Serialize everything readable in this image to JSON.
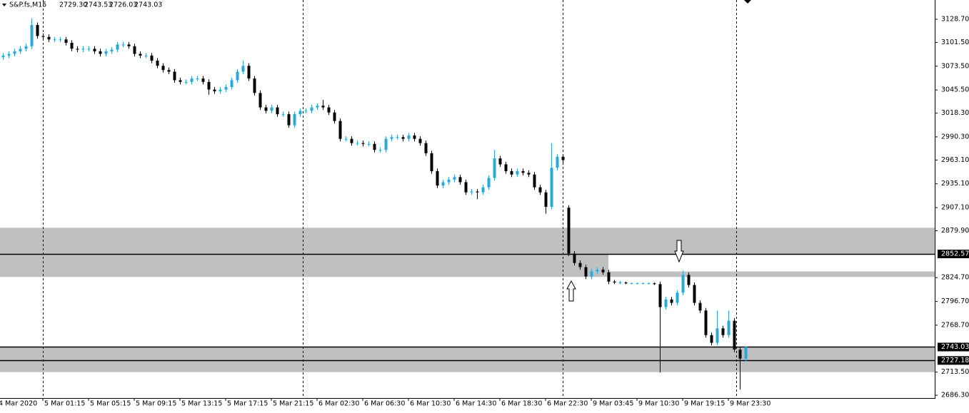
{
  "chart_data": {
    "type": "candlestick",
    "symbol": "S&P.fs,M15",
    "header_values": [
      "2729.30",
      "2743.53",
      "2726.03",
      "2743.03"
    ],
    "up_color": "#29a8e0",
    "down_color": "#000000",
    "ylim": [
      2683,
      3151.4
    ],
    "yticks": [
      {
        "value": 3128.7,
        "label": "3128.70"
      },
      {
        "value": 3101.5,
        "label": "3101.50"
      },
      {
        "value": 3073.5,
        "label": "3073.50"
      },
      {
        "value": 3045.5,
        "label": "3045.50"
      },
      {
        "value": 3018.3,
        "label": "3018.30"
      },
      {
        "value": 2990.3,
        "label": "2990.30"
      },
      {
        "value": 2963.1,
        "label": "2963.10"
      },
      {
        "value": 2935.1,
        "label": "2935.10"
      },
      {
        "value": 2907.1,
        "label": "2907.10"
      },
      {
        "value": 2879.9,
        "label": "2879.90"
      },
      {
        "value": 2824.7,
        "label": "2824.70"
      },
      {
        "value": 2796.7,
        "label": "2796.70"
      },
      {
        "value": 2768.7,
        "label": "2768.70"
      },
      {
        "value": 2713.5,
        "label": "2713.50"
      },
      {
        "value": 2686.3,
        "label": "2686.30"
      }
    ],
    "levels": [
      2852.57,
      2743.03,
      2727.18
    ],
    "zones": [
      {
        "top": 2883.4,
        "bottom": 2852.57,
        "from": null,
        "to": null
      },
      {
        "top": 2852.57,
        "bottom": 2825.5,
        "from": null,
        "to": 106
      },
      {
        "top": 2832,
        "bottom": 2825.5,
        "from": 106,
        "to": null
      },
      {
        "top": 2743.03,
        "bottom": 2713.5,
        "from": null,
        "to": null
      }
    ],
    "xticks": [
      {
        "value": -1,
        "label": "4 Mar 2020"
      },
      {
        "value": 7,
        "label": "5 Mar 01:15"
      },
      {
        "value": 15,
        "label": "5 Mar 05:15"
      },
      {
        "value": 23,
        "label": "5 Mar 09:15"
      },
      {
        "value": 31,
        "label": "5 Mar 13:15"
      },
      {
        "value": 39,
        "label": "5 Mar 17:15"
      },
      {
        "value": 47,
        "label": "5 Mar 21:15"
      },
      {
        "value": 55,
        "label": "6 Mar 02:30"
      },
      {
        "value": 63,
        "label": "6 Mar 06:30"
      },
      {
        "value": 71,
        "label": "6 Mar 10:30"
      },
      {
        "value": 79,
        "label": "6 Mar 14:30"
      },
      {
        "value": 87,
        "label": "6 Mar 18:30"
      },
      {
        "value": 95,
        "label": "6 Mar 22:30"
      },
      {
        "value": 103,
        "label": "9 Mar 03:45"
      },
      {
        "value": 111,
        "label": "9 Mar 10:30"
      },
      {
        "value": 119,
        "label": "9 Mar 19:15"
      },
      {
        "value": 127,
        "label": "9 Mar 23:30"
      }
    ],
    "open": [
      3084,
      3086,
      3088,
      3091,
      3094,
      3097,
      3122,
      3109,
      3108,
      3105,
      3105,
      3105,
      3101,
      3094,
      3093,
      3094,
      3094,
      3091,
      3088,
      3091,
      3093,
      3099,
      3099,
      3097,
      3088,
      3086,
      3086,
      3080,
      3074,
      3069,
      3067,
      3057,
      3055,
      3055,
      3059,
      3059,
      3055,
      3046,
      3044,
      3046,
      3049,
      3057,
      3067,
      3074,
      3059,
      3042,
      3025,
      3021,
      3025,
      3017,
      3017,
      3004,
      3017,
      3021,
      3021,
      3025,
      3027,
      3025,
      3019,
      3009,
      2988,
      2988,
      2983,
      2983,
      2982,
      2982,
      2975,
      2975,
      2988,
      2990,
      2990,
      2988,
      2992,
      2988,
      2983,
      2971,
      2950,
      2933,
      2937,
      2940,
      2943,
      2937,
      2925,
      2926,
      2925,
      2931,
      2942,
      2965,
      2958,
      2950,
      2946,
      2950,
      2948,
      2946,
      2931,
      2925,
      2908,
      2954,
      2967,
      2907,
      2853,
      2842,
      2837,
      2826,
      2832,
      2834,
      2831,
      2820,
      2819,
      2819,
      2818,
      2818,
      2818,
      2818,
      2818,
      2817,
      2790,
      2799,
      2795,
      2807,
      2828,
      2816,
      2795,
      2786,
      2757,
      2748,
      2765,
      2757,
      2774,
      2740,
      2729.3
    ],
    "high": [
      3089,
      3091,
      3094,
      3097,
      3100,
      3130,
      3125,
      3112,
      3111,
      3108,
      3108,
      3108,
      3104,
      3097,
      3097,
      3097,
      3097,
      3094,
      3094,
      3096,
      3102,
      3102,
      3102,
      3100,
      3091,
      3089,
      3089,
      3083,
      3077,
      3072,
      3070,
      3060,
      3058,
      3062,
      3062,
      3062,
      3058,
      3049,
      3049,
      3052,
      3060,
      3070,
      3080,
      3077,
      3062,
      3045,
      3028,
      3028,
      3028,
      3020,
      3020,
      3020,
      3024,
      3024,
      3028,
      3030,
      3034,
      3028,
      3022,
      3012,
      2991,
      2991,
      2986,
      2986,
      2985,
      2985,
      2978,
      2991,
      2993,
      2993,
      2993,
      2995,
      2995,
      2991,
      2986,
      2974,
      2953,
      2940,
      2943,
      2946,
      2946,
      2940,
      2929,
      2929,
      2934,
      2945,
      2975,
      2968,
      2961,
      2953,
      2953,
      2953,
      2951,
      2949,
      2934,
      2928,
      2983,
      2970,
      2970,
      2910,
      2856,
      2845,
      2840,
      2835,
      2837,
      2837,
      2834,
      2822,
      2821,
      2820,
      2819,
      2819,
      2819,
      2819,
      2819,
      2820,
      2802,
      2802,
      2810,
      2833,
      2831,
      2819,
      2798,
      2789,
      2760,
      2786,
      2768,
      2786,
      2777,
      2743,
      2743.53
    ],
    "low": [
      3081,
      3083,
      3085,
      3088,
      3091,
      3094,
      3106,
      3105,
      3102,
      3102,
      3102,
      3098,
      3091,
      3090,
      3090,
      3091,
      3088,
      3085,
      3085,
      3088,
      3090,
      3096,
      3094,
      3085,
      3083,
      3083,
      3077,
      3071,
      3066,
      3064,
      3054,
      3052,
      3052,
      3052,
      3056,
      3052,
      3040,
      3041,
      3041,
      3043,
      3046,
      3054,
      3064,
      3056,
      3039,
      3022,
      3018,
      3018,
      3014,
      3014,
      3001,
      3001,
      3014,
      3018,
      3018,
      3022,
      3022,
      3016,
      3006,
      2985,
      2985,
      2980,
      2980,
      2979,
      2979,
      2972,
      2972,
      2972,
      2985,
      2987,
      2985,
      2985,
      2985,
      2980,
      2968,
      2947,
      2930,
      2930,
      2934,
      2937,
      2934,
      2922,
      2922,
      2917,
      2922,
      2928,
      2939,
      2955,
      2947,
      2943,
      2943,
      2945,
      2943,
      2928,
      2922,
      2900,
      2905,
      2951,
      2960,
      2850,
      2839,
      2834,
      2823,
      2823,
      2829,
      2828,
      2817,
      2817,
      2817,
      2817,
      2817,
      2817,
      2817,
      2817,
      2816,
      2713,
      2787,
      2792,
      2792,
      2804,
      2813,
      2792,
      2783,
      2754,
      2745,
      2745,
      2754,
      2754,
      2737,
      2693,
      2726.03
    ],
    "close": [
      3086,
      3088,
      3091,
      3094,
      3097,
      3122,
      3109,
      3108,
      3105,
      3105,
      3105,
      3101,
      3094,
      3093,
      3094,
      3094,
      3091,
      3088,
      3091,
      3093,
      3099,
      3099,
      3097,
      3088,
      3086,
      3086,
      3080,
      3074,
      3069,
      3067,
      3057,
      3055,
      3055,
      3059,
      3059,
      3055,
      3046,
      3044,
      3046,
      3049,
      3057,
      3067,
      3074,
      3059,
      3042,
      3025,
      3021,
      3025,
      3017,
      3017,
      3004,
      3017,
      3021,
      3021,
      3025,
      3027,
      3025,
      3019,
      3009,
      2988,
      2988,
      2983,
      2983,
      2982,
      2982,
      2975,
      2975,
      2988,
      2990,
      2990,
      2988,
      2992,
      2988,
      2983,
      2971,
      2950,
      2933,
      2937,
      2940,
      2943,
      2937,
      2925,
      2926,
      2925,
      2931,
      2942,
      2965,
      2958,
      2950,
      2946,
      2950,
      2948,
      2946,
      2931,
      2925,
      2908,
      2954,
      2967,
      2963,
      2853,
      2842,
      2837,
      2826,
      2832,
      2834,
      2831,
      2820,
      2819,
      2819,
      2818,
      2818,
      2818,
      2818,
      2818,
      2817,
      2790,
      2799,
      2795,
      2807,
      2828,
      2816,
      2795,
      2786,
      2757,
      2748,
      2765,
      2757,
      2774,
      2740,
      2729.3,
      2743.03
    ]
  }
}
